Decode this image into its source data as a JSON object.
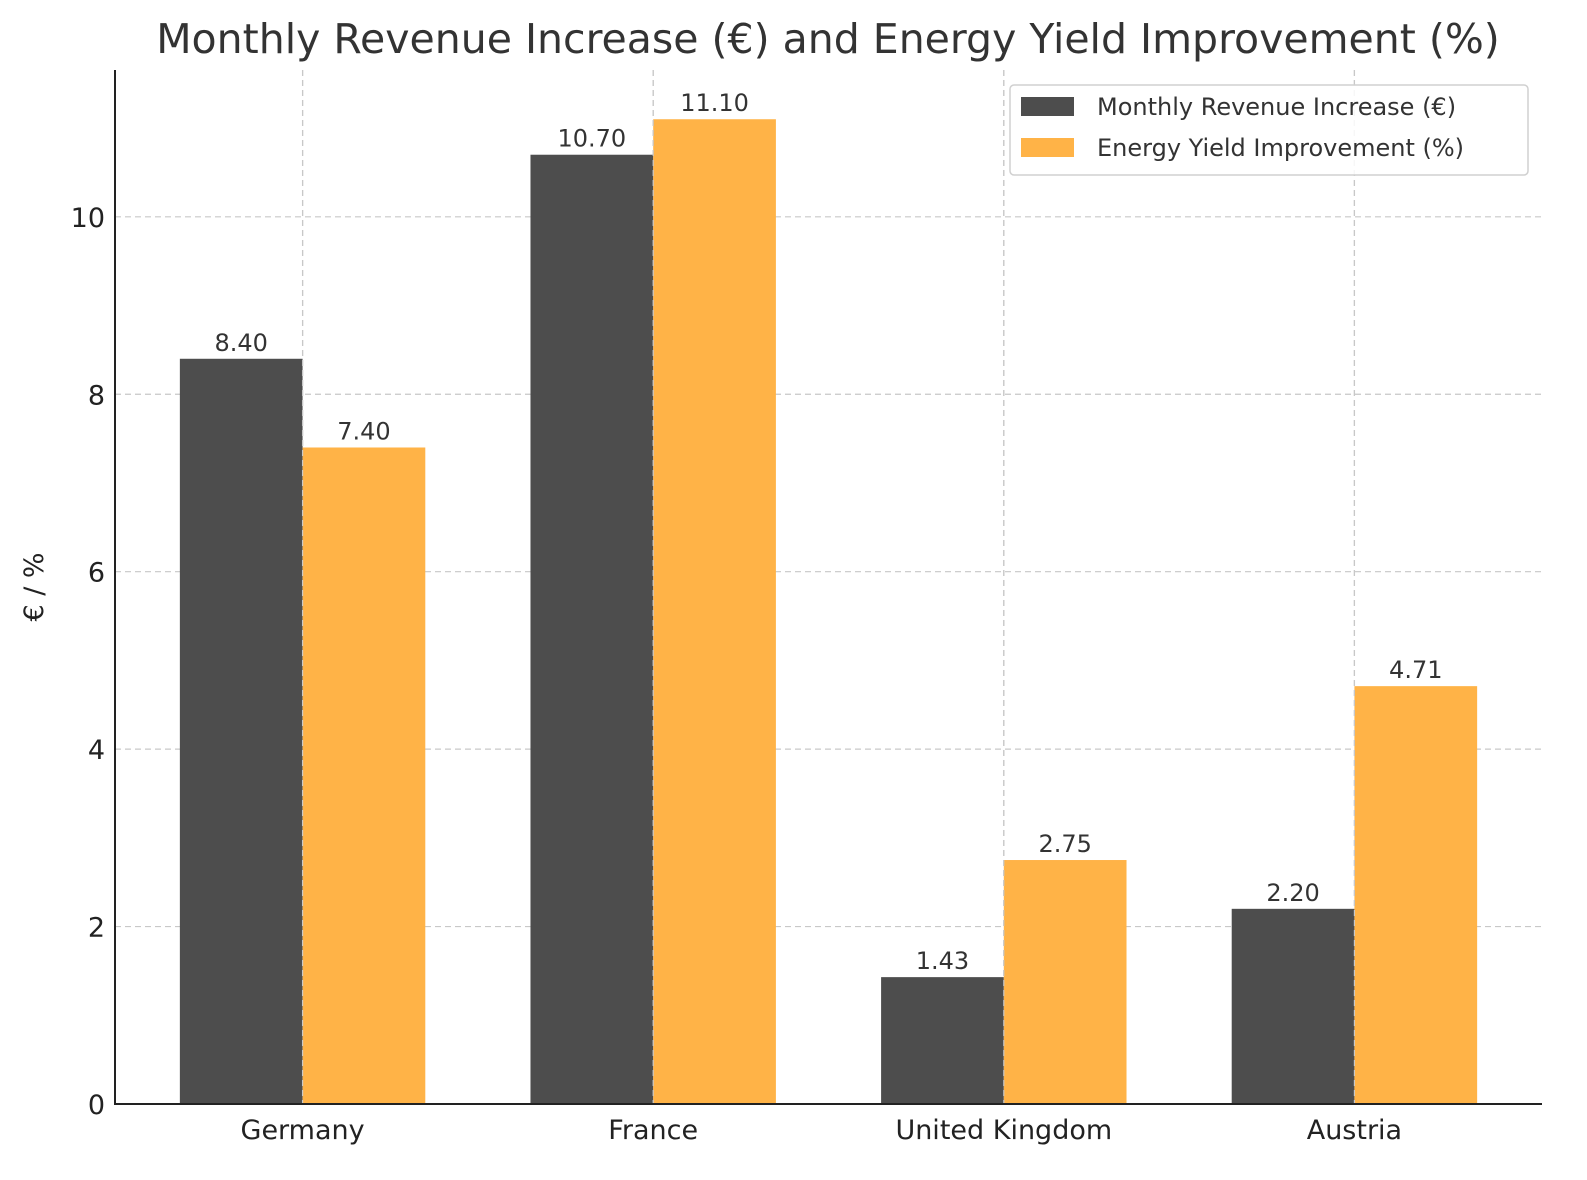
{
  "chart_data": {
    "type": "bar",
    "title": "Monthly Revenue Increase (€) and Energy Yield Improvement (%)",
    "xlabel": "",
    "ylabel": "€ / %",
    "categories": [
      "Germany",
      "France",
      "United Kingdom",
      "Austria"
    ],
    "series": [
      {
        "name": "Monthly Revenue Increase (€)",
        "values": [
          8.4,
          10.7,
          1.43,
          2.2
        ],
        "color": "#4d4d4d"
      },
      {
        "name": "Energy Yield Improvement (%)",
        "values": [
          7.4,
          11.1,
          2.75,
          4.71
        ],
        "color": "#ffb347"
      }
    ],
    "data_labels": [
      [
        "8.40",
        "10.70",
        "1.43",
        "2.20"
      ],
      [
        "7.40",
        "11.10",
        "2.75",
        "4.71"
      ]
    ],
    "ylim": [
      0,
      11.655
    ],
    "yticks": [
      0,
      2,
      4,
      6,
      8,
      10
    ],
    "grid": true,
    "legend_position": "top-right"
  }
}
